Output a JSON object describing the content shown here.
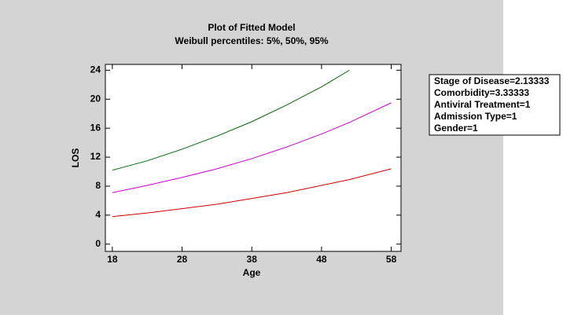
{
  "chart_data": {
    "type": "line",
    "title": "Plot of Fitted Model",
    "subtitle": "Weibull percentiles: 5%,  50%,  95%",
    "x_label": "Age",
    "y_label": "LOS",
    "x": [
      18,
      23,
      28,
      33,
      38,
      43,
      48,
      52,
      58
    ],
    "series": [
      {
        "name": "5%",
        "color": "#cc0000",
        "values": [
          3.8,
          4.3,
          4.9,
          5.5,
          6.3,
          7.1,
          8.1,
          8.9,
          10.4
        ]
      },
      {
        "name": "50%",
        "color": "#cc00cc",
        "values": [
          7.1,
          8.1,
          9.2,
          10.4,
          11.8,
          13.4,
          15.2,
          16.8,
          19.5
        ]
      },
      {
        "name": "95%",
        "color": "#006400",
        "values": [
          10.2,
          11.5,
          13.1,
          14.9,
          16.9,
          19.2,
          21.7,
          24.0,
          null
        ]
      }
    ],
    "xlim": [
      17,
      59.4
    ],
    "xticks": [
      18,
      28,
      38,
      48,
      58
    ],
    "ylim": [
      -1,
      24.8
    ],
    "yticks": [
      0,
      4,
      8,
      12,
      16,
      20,
      24
    ],
    "annotation_lines": [
      "Stage of Disease=2.13333",
      "Comorbidity=3.33333",
      "Antiviral Treatment=1",
      "Admission Type=1",
      "Gender=1"
    ]
  }
}
